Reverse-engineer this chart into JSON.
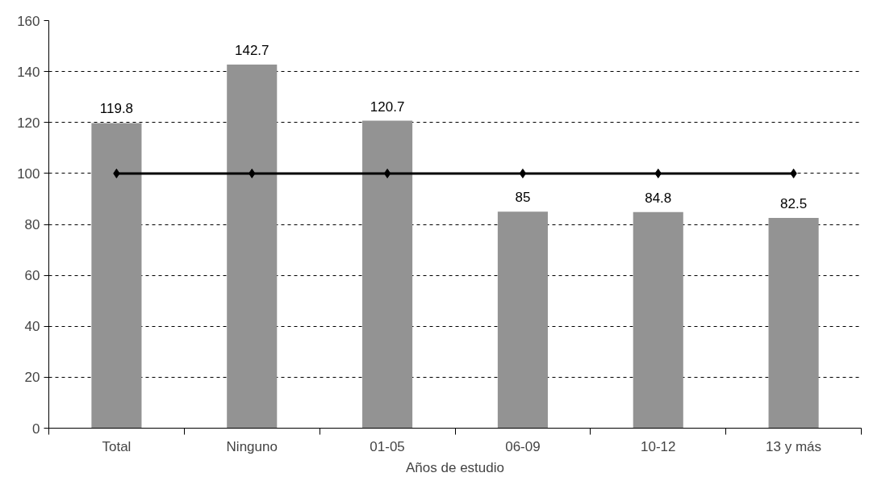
{
  "chart_data": {
    "type": "bar",
    "xlabel": "Años de estudio",
    "categories": [
      "Total",
      "Ninguno",
      "01-05",
      "06-09",
      "10-12",
      "13 y más"
    ],
    "series": [
      {
        "color": "#939393",
        "values": [
          119.8,
          142.7,
          120.7,
          85,
          84.8,
          82.5
        ],
        "value_labels": [
          "119.8",
          "142.7",
          "120.7",
          "85",
          "84.8",
          "82.5"
        ]
      },
      {
        "type": "line",
        "color": "#000000",
        "values": [
          100,
          100,
          100,
          100,
          100,
          100
        ],
        "marker": "diamond",
        "line_style": "solid"
      }
    ],
    "ylim": [
      0,
      160
    ],
    "yticks": [
      0,
      20,
      40,
      60,
      80,
      100,
      120,
      140,
      160
    ],
    "grid": "y"
  }
}
